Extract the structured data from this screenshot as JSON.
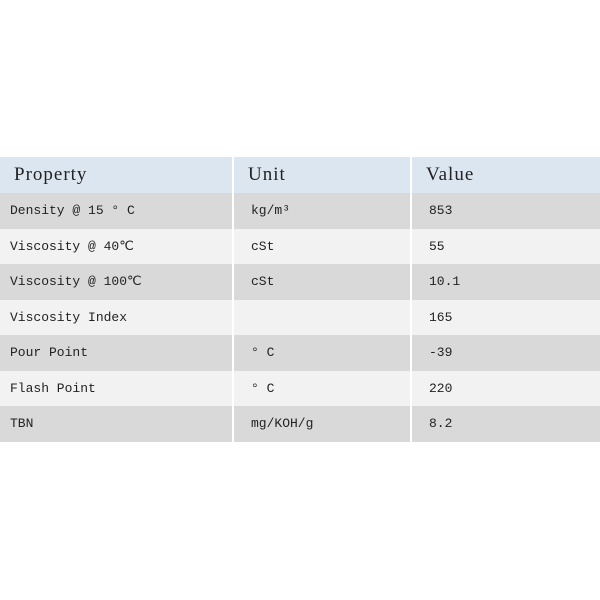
{
  "headers": [
    "Property",
    "Unit",
    "Value"
  ],
  "rows": [
    {
      "property": "Density @ 15 ° C",
      "unit": "kg/m³",
      "value": "853"
    },
    {
      "property": "Viscosity @ 40℃",
      "unit": "cSt",
      "value": "55"
    },
    {
      "property": "Viscosity @ 100℃",
      "unit": "cSt",
      "value": "10.1"
    },
    {
      "property": "Viscosity Index",
      "unit": "",
      "value": "165"
    },
    {
      "property": "Pour Point",
      "unit": "° C",
      "value": "-39"
    },
    {
      "property": "Flash Point",
      "unit": "° C",
      "value": "220"
    },
    {
      "property": "TBN",
      "unit": "mg/KOH/g",
      "value": "8.2"
    }
  ]
}
